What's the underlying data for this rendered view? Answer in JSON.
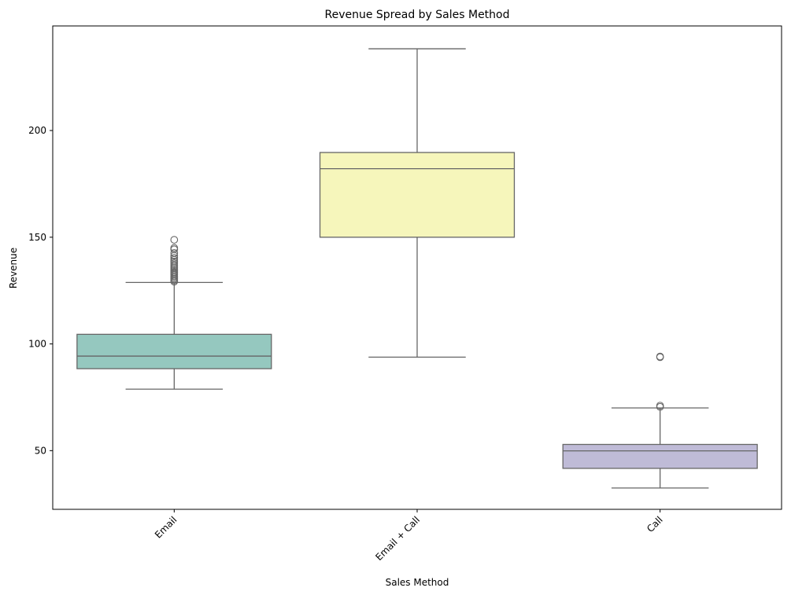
{
  "chart_data": {
    "type": "box",
    "title": "Revenue Spread by Sales Method",
    "xlabel": "Sales Method",
    "ylabel": "Revenue",
    "categories": [
      "Email",
      "Email + Call",
      "Call"
    ],
    "ylim": [
      22.5,
      249
    ],
    "yticks": [
      50,
      100,
      150,
      200
    ],
    "grid": false,
    "line_color": "#666666",
    "boxes": [
      {
        "category": "Email",
        "whisker_low": 78.8,
        "q1": 88.4,
        "median": 94.3,
        "q3": 104.5,
        "whisker_high": 128.8,
        "outliers": [
          129.2,
          129.8,
          130.5,
          131.1,
          131.7,
          132.4,
          133.0,
          133.6,
          134.2,
          134.9,
          135.6,
          136.3,
          137.0,
          137.8,
          138.6,
          139.4,
          140.3,
          141.3,
          142.6,
          144.3,
          145.0,
          148.8
        ],
        "color": "#95c8bf"
      },
      {
        "category": "Email + Call",
        "whisker_low": 93.8,
        "q1": 150.0,
        "median": 182.1,
        "q3": 189.7,
        "whisker_high": 238.3,
        "outliers": [],
        "color": "#f6f6bb"
      },
      {
        "category": "Call",
        "whisker_low": 32.5,
        "q1": 41.7,
        "median": 49.9,
        "q3": 52.9,
        "whisker_high": 70.0,
        "outliers": [
          70.5,
          71.1,
          93.8,
          94.1
        ],
        "color": "#bfbbd7"
      }
    ]
  }
}
